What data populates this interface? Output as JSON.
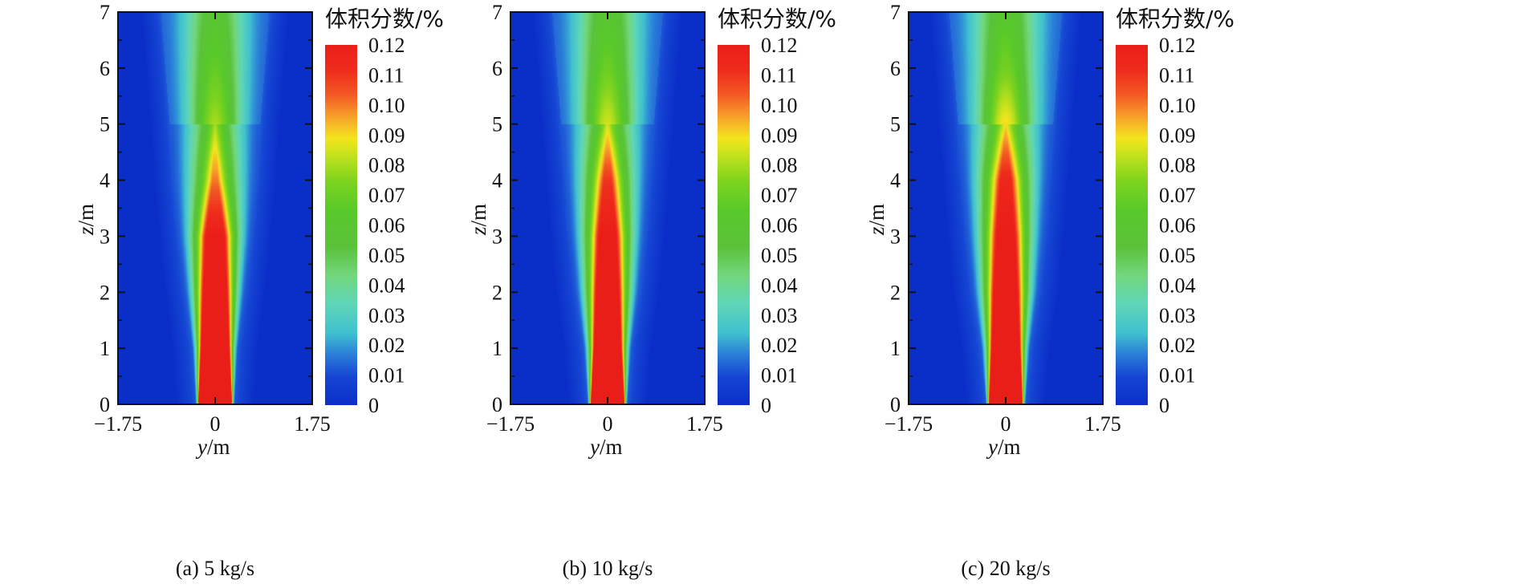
{
  "colorbar": {
    "title": "体积分数/%",
    "ticks": [
      "0.12",
      "0.11",
      "0.10",
      "0.09",
      "0.08",
      "0.07",
      "0.06",
      "0.05",
      "0.04",
      "0.03",
      "0.02",
      "0.01",
      "0"
    ],
    "stops": [
      [
        0.0,
        "#0a2fc8"
      ],
      [
        0.08,
        "#1646d4"
      ],
      [
        0.14,
        "#2a7ed8"
      ],
      [
        0.2,
        "#40c0d0"
      ],
      [
        0.28,
        "#5fd6b8"
      ],
      [
        0.36,
        "#72d67c"
      ],
      [
        0.44,
        "#5ac23a"
      ],
      [
        0.54,
        "#58c92a"
      ],
      [
        0.62,
        "#7cd31f"
      ],
      [
        0.7,
        "#c9e31d"
      ],
      [
        0.74,
        "#f4e41d"
      ],
      [
        0.8,
        "#f7a22a"
      ],
      [
        0.86,
        "#f35a24"
      ],
      [
        0.93,
        "#ee2c1c"
      ],
      [
        1.0,
        "#ea1e18"
      ]
    ]
  },
  "panels": [
    {
      "caption": "(a) 5 kg/s",
      "xlabel_var": "y",
      "xlabel_unit": "/m",
      "ylabel_var": "z",
      "ylabel_unit": "/m"
    },
    {
      "caption": "(b) 10 kg/s",
      "xlabel_var": "y",
      "xlabel_unit": "/m",
      "ylabel_var": "z",
      "ylabel_unit": "/m"
    },
    {
      "caption": "(c) 20 kg/s",
      "xlabel_var": "y",
      "xlabel_unit": "/m",
      "ylabel_var": "z",
      "ylabel_unit": "/m"
    }
  ],
  "chart_data": [
    {
      "type": "heatmap",
      "title": "(a) 5 kg/s",
      "xlabel": "y/m",
      "ylabel": "z/m",
      "xlim": [
        -1.75,
        1.75
      ],
      "ylim": [
        0,
        7
      ],
      "x_ticks": [
        "-1.75",
        "0",
        "1.75"
      ],
      "y_ticks": [
        "0",
        "1",
        "2",
        "3",
        "4",
        "5",
        "6",
        "7"
      ],
      "colorbar_range": [
        0,
        0.12
      ],
      "profile": {
        "z": [
          0,
          1,
          2,
          3,
          4,
          5,
          6,
          7
        ],
        "core_half_width_m": [
          0.3,
          0.25,
          0.21,
          0.16,
          0.05,
          0,
          0,
          0
        ],
        "plume_half_width_m": [
          0.35,
          0.42,
          0.55,
          0.66,
          0.75,
          0.82,
          0.9,
          0.98
        ],
        "centerline_fraction": [
          0.12,
          0.12,
          0.12,
          0.12,
          0.1,
          0.08,
          0.068,
          0.058
        ]
      }
    },
    {
      "type": "heatmap",
      "title": "(b) 10 kg/s",
      "xlabel": "y/m",
      "ylabel": "z/m",
      "xlim": [
        -1.75,
        1.75
      ],
      "ylim": [
        0,
        7
      ],
      "x_ticks": [
        "-1.75",
        "0",
        "1.75"
      ],
      "y_ticks": [
        "0",
        "1",
        "2",
        "3",
        "4",
        "5",
        "6",
        "7"
      ],
      "colorbar_range": [
        0,
        0.12
      ],
      "profile": {
        "z": [
          0,
          1,
          2,
          3,
          4,
          5,
          6,
          7
        ],
        "core_half_width_m": [
          0.3,
          0.24,
          0.2,
          0.15,
          0.07,
          0,
          0,
          0
        ],
        "plume_half_width_m": [
          0.36,
          0.44,
          0.58,
          0.68,
          0.76,
          0.84,
          0.92,
          1.0
        ],
        "centerline_fraction": [
          0.12,
          0.12,
          0.12,
          0.12,
          0.11,
          0.085,
          0.07,
          0.06
        ]
      }
    },
    {
      "type": "heatmap",
      "title": "(c) 20 kg/s",
      "xlabel": "y/m",
      "ylabel": "z/m",
      "xlim": [
        -1.75,
        1.75
      ],
      "ylim": [
        0,
        7
      ],
      "x_ticks": [
        "-1.75",
        "0",
        "1.75"
      ],
      "y_ticks": [
        "0",
        "1",
        "2",
        "3",
        "4",
        "5",
        "6",
        "7"
      ],
      "colorbar_range": [
        0,
        0.12
      ],
      "profile": {
        "z": [
          0,
          1,
          2,
          3,
          4,
          5,
          6,
          7
        ],
        "core_half_width_m": [
          0.3,
          0.25,
          0.21,
          0.16,
          0.09,
          0,
          0,
          0
        ],
        "plume_half_width_m": [
          0.36,
          0.45,
          0.6,
          0.7,
          0.78,
          0.86,
          0.94,
          1.02
        ],
        "centerline_fraction": [
          0.12,
          0.12,
          0.12,
          0.12,
          0.115,
          0.09,
          0.072,
          0.062
        ]
      }
    }
  ]
}
